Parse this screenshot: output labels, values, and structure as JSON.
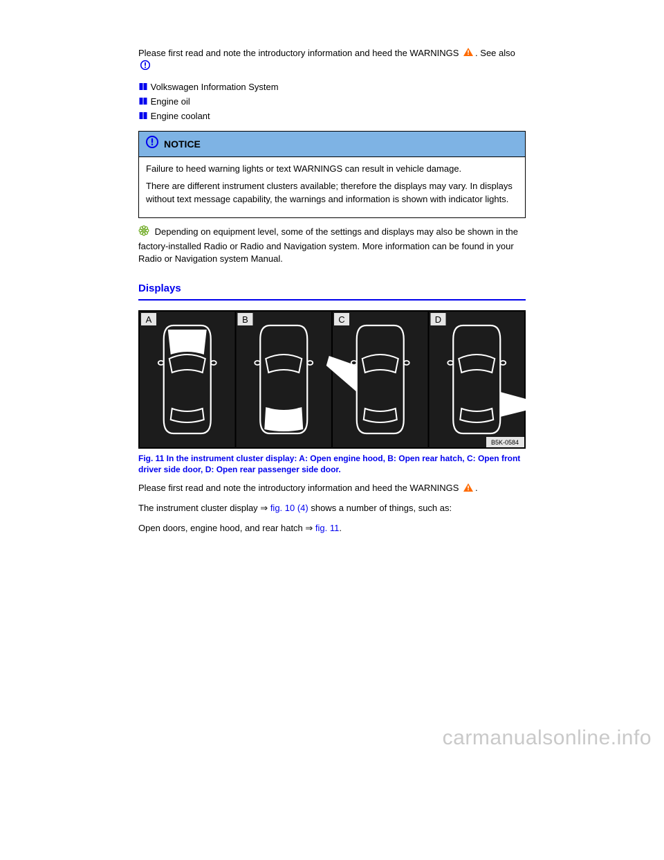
{
  "colors": {
    "link": "#0000ee",
    "notice_head_bg": "#7eb3e4",
    "notice_icon_fill": "#0000ee",
    "warn_triangle": "#ff6a00",
    "flower_outline": "#6aa81c",
    "text": "#000000",
    "page_bg": "#ffffff",
    "figure_bg": "#000000",
    "figure_panel_bg": "#1c1c1c",
    "figure_outline": "#ffffff",
    "figure_label_bg": "#e5e5e5",
    "watermark": "#c9c9c9"
  },
  "intro": {
    "p1_a": "Please first read and note the introductory information and heed the WARNINGS ",
    "p1_b": ". See also ",
    "refs": [
      "Volkswagen Information System",
      "Engine oil",
      "Engine coolant"
    ]
  },
  "notice": {
    "label": "NOTICE",
    "body1": "Failure to heed warning lights or text WARNINGS can result in vehicle damage.",
    "body2": "There are different instrument clusters available; therefore the displays may vary. In displays without text message capability, the warnings and information is shown with indicator lights."
  },
  "flower": {
    "text": "Depending on equipment level, some of the settings and displays may also be shown in the factory-installed Radio or Radio and Navigation system. More information can be found in your Radio or Navigation system Manual."
  },
  "section_title": "Displays",
  "figure": {
    "labels": [
      "A",
      "B",
      "C",
      "D"
    ],
    "code": "B5K-0584",
    "panel_bg": "#1c1c1c",
    "outline": "#ffffff",
    "label_bg": "#e5e5e5"
  },
  "caption": "Fig. 11 In the instrument cluster display: A: Open engine hood, B: Open rear hatch, C: Open front driver side door, D: Open rear passenger side door.",
  "after": {
    "p1_a": "Please first read and note the introductory information and heed the WARNINGS ",
    "p1_b": ".",
    "p2_a": "The instrument cluster display ⇒ ",
    "p2_ref": "fig. 10 (4)",
    "p2_b": " shows a number of things, such as:",
    "bullets": [
      {
        "a": "Open doors, engine hood, and rear hatch ⇒ ",
        "ref": "fig. 11",
        "b": "."
      }
    ]
  },
  "watermark": "carmanualsonline.info"
}
